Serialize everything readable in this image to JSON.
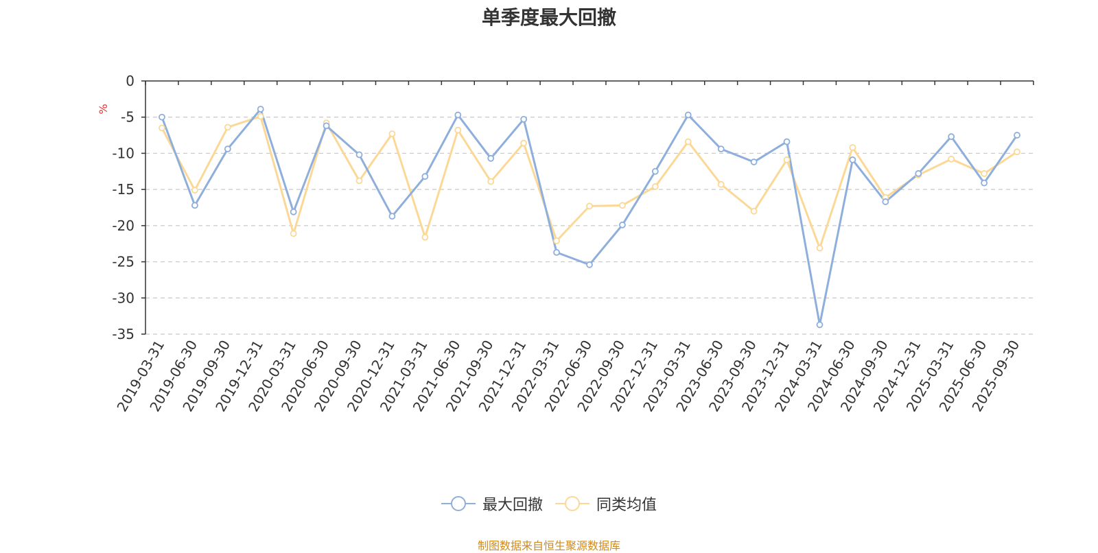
{
  "title": "单季度最大回撤",
  "source_note": "制图数据来自恒生聚源数据库",
  "colors": {
    "series1": "#8eaedb",
    "series2": "#fbd896",
    "unit": "#e8302e",
    "axis": "#333333",
    "grid": "#c8c8c8",
    "source": "#d08a1a"
  },
  "chart_data": {
    "type": "line",
    "title": "单季度最大回撤",
    "ylabel": "%",
    "ylim": [
      -35,
      0
    ],
    "yticks": [
      0,
      -5,
      -10,
      -15,
      -20,
      -25,
      -30,
      -35
    ],
    "grid": true,
    "legend_position": "bottom-center",
    "categories": [
      "2019-03-31",
      "2019-06-30",
      "2019-09-30",
      "2019-12-31",
      "2020-03-31",
      "2020-06-30",
      "2020-09-30",
      "2020-12-31",
      "2021-03-31",
      "2021-06-30",
      "2021-09-30",
      "2021-12-31",
      "2022-03-31",
      "2022-06-30",
      "2022-09-30",
      "2022-12-31",
      "2023-03-31",
      "2023-06-30",
      "2023-09-30",
      "2023-12-31",
      "2024-03-31",
      "2024-06-30",
      "2024-09-30",
      "2024-12-31",
      "2025-03-31",
      "2025-06-30",
      "2025-09-30"
    ],
    "series": [
      {
        "name": "最大回撤",
        "values": [
          -5.0,
          -17.2,
          -9.4,
          -3.9,
          -18.1,
          -6.2,
          -10.2,
          -18.7,
          -13.2,
          -4.7,
          -10.7,
          -5.3,
          -23.7,
          -25.4,
          -19.9,
          -12.5,
          -4.7,
          -9.4,
          -11.2,
          -8.4,
          -33.7,
          -10.9,
          -16.7,
          -12.8,
          -7.7,
          -14.1,
          -7.5
        ]
      },
      {
        "name": "同类均值",
        "values": [
          -6.5,
          -15.1,
          -6.4,
          -4.9,
          -21.1,
          -5.8,
          -13.8,
          -7.3,
          -21.6,
          -6.8,
          -13.9,
          -8.6,
          -22.1,
          -17.3,
          -17.2,
          -14.6,
          -8.4,
          -14.3,
          -18.0,
          -10.9,
          -23.1,
          -9.2,
          -16.1,
          -13.0,
          -10.8,
          -12.8,
          -9.8
        ]
      }
    ]
  }
}
